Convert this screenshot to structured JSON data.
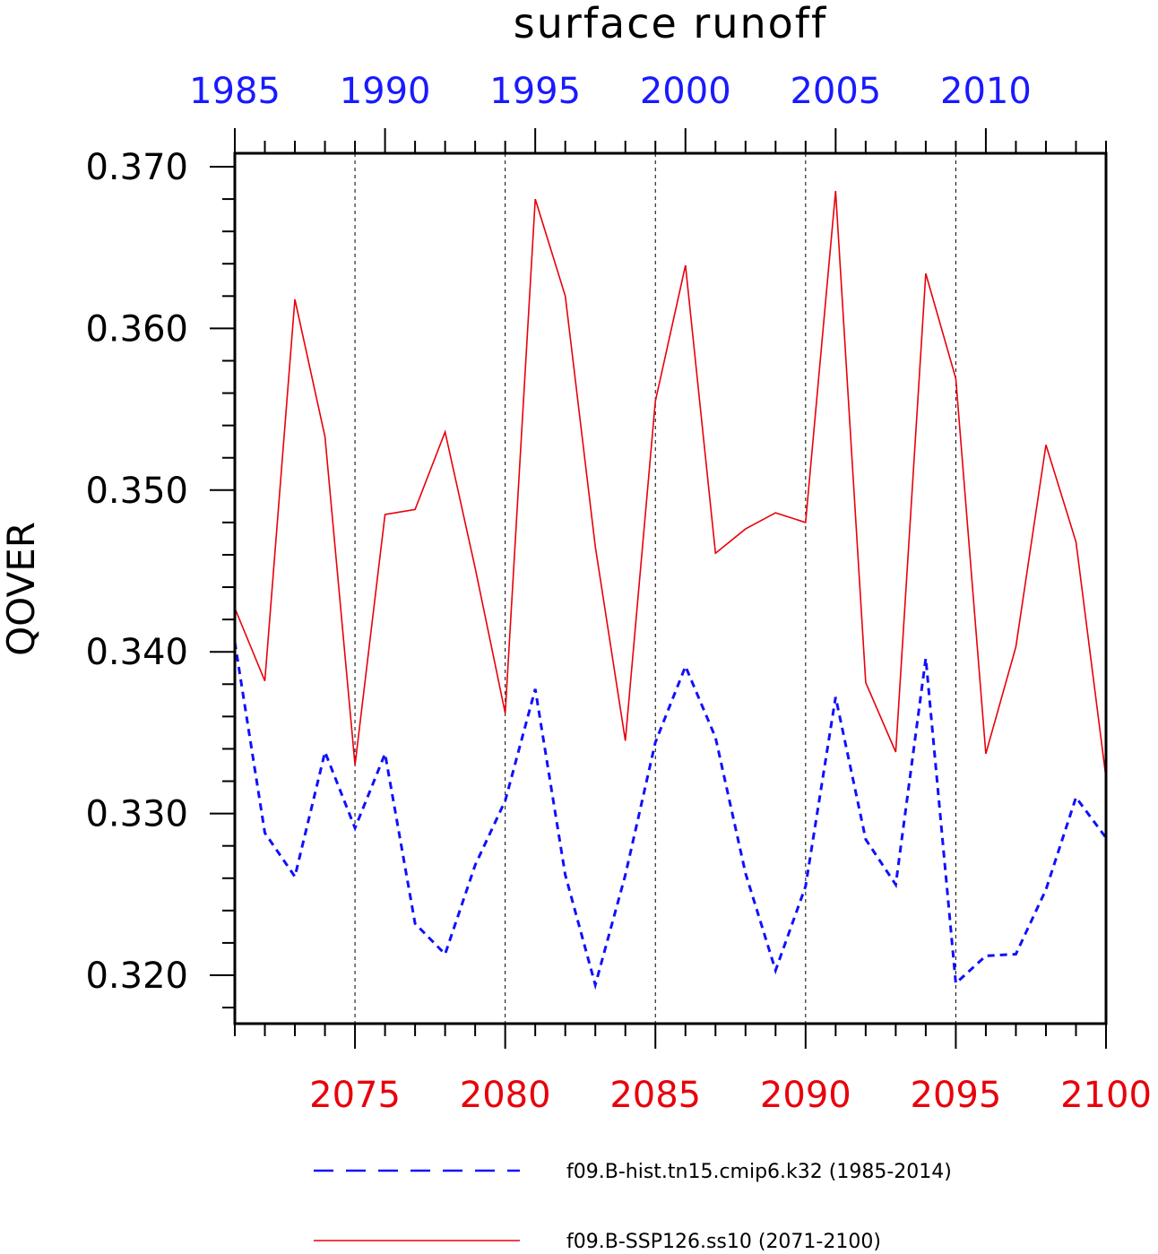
{
  "chart_data": {
    "type": "line",
    "title": "surface runoff",
    "ylabel": "QOVER",
    "ylim": [
      0.317,
      0.371
    ],
    "yticks": [
      "0.320",
      "0.330",
      "0.340",
      "0.350",
      "0.360",
      "0.370"
    ],
    "yticks_values": [
      0.32,
      0.33,
      0.34,
      0.35,
      0.36,
      0.37
    ],
    "grid": "dashed vertical at major bottom ticks",
    "x_bottom": {
      "range": [
        2071,
        2100
      ],
      "ticks": [
        "2075",
        "2080",
        "2085",
        "2090",
        "2095",
        "2100"
      ],
      "color": "#e8000b"
    },
    "x_top": {
      "range": [
        1985,
        2014
      ],
      "ticks": [
        "1985",
        "1990",
        "1995",
        "2000",
        "2005",
        "2010"
      ],
      "color": "#1a1aff"
    },
    "series": [
      {
        "name": "f09.B-hist.tn15.cmip6.k32 (1985-2014)",
        "color": "#1010ff",
        "style": "dashed",
        "axis": "top",
        "x": [
          1985,
          1986,
          1987,
          1988,
          1989,
          1990,
          1991,
          1992,
          1993,
          1994,
          1995,
          1996,
          1997,
          1998,
          1999,
          2000,
          2001,
          2002,
          2003,
          2004,
          2005,
          2006,
          2007,
          2008,
          2009,
          2010,
          2011,
          2012,
          2013,
          2014
        ],
        "values": [
          0.3406,
          0.3288,
          0.3261,
          0.3338,
          0.3291,
          0.3337,
          0.3232,
          0.3213,
          0.3268,
          0.3308,
          0.3377,
          0.3262,
          0.3194,
          0.3262,
          0.3344,
          0.3391,
          0.3347,
          0.3263,
          0.3203,
          0.3255,
          0.3372,
          0.3284,
          0.3256,
          0.3396,
          0.3195,
          0.3212,
          0.3213,
          0.3253,
          0.331,
          0.3285
        ]
      },
      {
        "name": "f09.B-SSP126.ss10 (2071-2100)",
        "color": "#e8000b",
        "style": "solid",
        "axis": "bottom",
        "x": [
          2071,
          2072,
          2073,
          2074,
          2075,
          2076,
          2077,
          2078,
          2079,
          2080,
          2081,
          2082,
          2083,
          2084,
          2085,
          2086,
          2087,
          2088,
          2089,
          2090,
          2091,
          2092,
          2093,
          2094,
          2095,
          2096,
          2097,
          2098,
          2099,
          2100
        ],
        "values": [
          0.3427,
          0.3382,
          0.3618,
          0.3533,
          0.333,
          0.3485,
          0.3488,
          0.3536,
          0.3452,
          0.3362,
          0.368,
          0.362,
          0.3465,
          0.3345,
          0.3555,
          0.3639,
          0.3461,
          0.3476,
          0.3486,
          0.348,
          0.3685,
          0.3381,
          0.3338,
          0.3634,
          0.3569,
          0.3337,
          0.3403,
          0.3528,
          0.3468,
          0.3322
        ]
      }
    ],
    "legend": {
      "placement": "bottom",
      "entries": [
        "f09.B-hist.tn15.cmip6.k32 (1985-2014)",
        "f09.B-SSP126.ss10 (2071-2100)"
      ]
    }
  }
}
